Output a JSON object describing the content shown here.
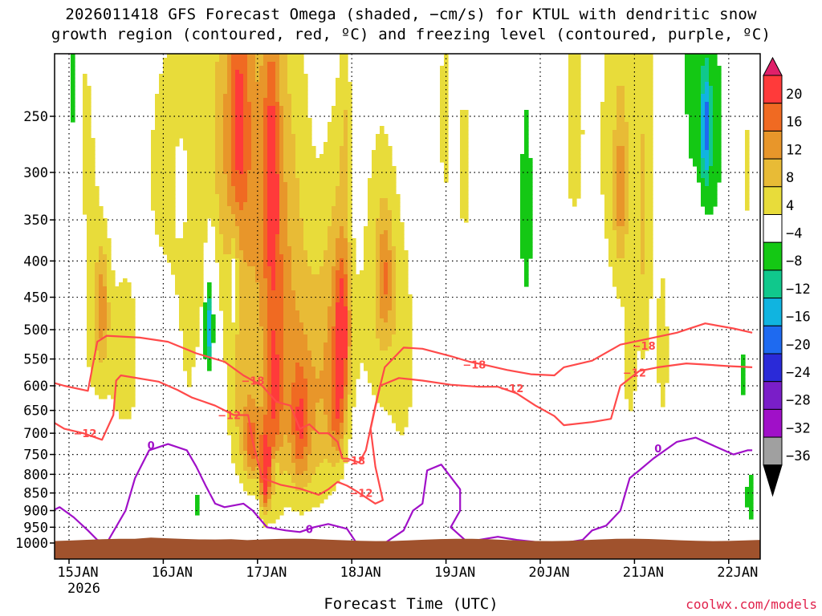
{
  "chart_data": {
    "type": "heatmap",
    "title_line1": "2026011418 GFS Forecast Omega (shaded, −cm/s) for KTUL with dendritic snow",
    "title_line2": "growth region (contoured, red, ºC) and freezing level (contoured, purple, ºC)",
    "xlabel": "Forecast Time (UTC)",
    "ylabel": "",
    "credit": "coolwx.com/models",
    "x_range_days": [
      0,
      7.5
    ],
    "x_ticks": [
      {
        "day": 0.25,
        "label": "15JAN",
        "sub": "2026"
      },
      {
        "day": 1.25,
        "label": "16JAN",
        "sub": ""
      },
      {
        "day": 2.25,
        "label": "17JAN",
        "sub": ""
      },
      {
        "day": 3.25,
        "label": "18JAN",
        "sub": ""
      },
      {
        "day": 4.25,
        "label": "19JAN",
        "sub": ""
      },
      {
        "day": 5.25,
        "label": "20JAN",
        "sub": ""
      },
      {
        "day": 6.25,
        "label": "21JAN",
        "sub": ""
      },
      {
        "day": 7.25,
        "label": "22JAN",
        "sub": ""
      }
    ],
    "y_range_hpa": [
      200,
      1030
    ],
    "y_ticks": [
      250,
      300,
      350,
      400,
      450,
      500,
      550,
      600,
      650,
      700,
      750,
      800,
      850,
      900,
      950,
      1000
    ],
    "terrain_top_hpa": 990,
    "colorbar": {
      "labels": [
        "20",
        "16",
        "12",
        "8",
        "4",
        "−4",
        "−8",
        "−12",
        "−16",
        "−20",
        "−24",
        "−28",
        "−32",
        "−36"
      ],
      "colors": [
        "#ff3a3a",
        "#f06a22",
        "#e8962a",
        "#e8bb36",
        "#e8dc3a",
        "#ffffff",
        "#14c814",
        "#10c88c",
        "#10b4e0",
        "#1e6af0",
        "#2a2ad8",
        "#7a1ec8",
        "#a010c8",
        "#a0a0a0"
      ],
      "top_color": "#e0206a",
      "bottom_color": "#000000"
    },
    "omega_blobs": [
      {
        "day": 0.05,
        "hpa": 420,
        "sd_day": 0.06,
        "sd_hpa": 180,
        "val": 6
      },
      {
        "day": 0.55,
        "hpa": 500,
        "sd_day": 0.12,
        "sd_hpa": 120,
        "val": 6
      },
      {
        "day": 0.6,
        "hpa": 460,
        "sd_day": 0.05,
        "sd_hpa": 60,
        "val": 9
      },
      {
        "day": 0.85,
        "hpa": 560,
        "sd_day": 0.12,
        "sd_hpa": 120,
        "val": 6
      },
      {
        "day": 0.45,
        "hpa": 260,
        "sd_day": 0.08,
        "sd_hpa": 80,
        "val": 5
      },
      {
        "day": 1.3,
        "hpa": 300,
        "sd_day": 0.25,
        "sd_hpa": 120,
        "val": 5
      },
      {
        "day": 1.55,
        "hpa": 500,
        "sd_day": 0.1,
        "sd_hpa": 160,
        "val": 5
      },
      {
        "day": 1.95,
        "hpa": 270,
        "sd_day": 0.28,
        "sd_hpa": 120,
        "val": 7
      },
      {
        "day": 2.05,
        "hpa": 250,
        "sd_day": 0.08,
        "sd_hpa": 60,
        "val": 11
      },
      {
        "day": 2.3,
        "hpa": 330,
        "sd_day": 0.3,
        "sd_hpa": 200,
        "val": 8
      },
      {
        "day": 2.4,
        "hpa": 300,
        "sd_day": 0.06,
        "sd_hpa": 80,
        "val": 12
      },
      {
        "day": 2.1,
        "hpa": 640,
        "sd_day": 0.12,
        "sd_hpa": 140,
        "val": 8
      },
      {
        "day": 2.2,
        "hpa": 730,
        "sd_day": 0.06,
        "sd_hpa": 60,
        "val": 12
      },
      {
        "day": 2.33,
        "hpa": 800,
        "sd_day": 0.035,
        "sd_hpa": 70,
        "val": 22
      },
      {
        "day": 2.42,
        "hpa": 650,
        "sd_day": 0.07,
        "sd_hpa": 150,
        "val": 12
      },
      {
        "day": 2.55,
        "hpa": 560,
        "sd_day": 0.18,
        "sd_hpa": 220,
        "val": 9
      },
      {
        "day": 2.7,
        "hpa": 690,
        "sd_day": 0.07,
        "sd_hpa": 100,
        "val": 12
      },
      {
        "day": 2.9,
        "hpa": 640,
        "sd_day": 0.14,
        "sd_hpa": 180,
        "val": 9
      },
      {
        "day": 3.12,
        "hpa": 470,
        "sd_day": 0.12,
        "sd_hpa": 160,
        "val": 10
      },
      {
        "day": 3.15,
        "hpa": 500,
        "sd_day": 0.05,
        "sd_hpa": 80,
        "val": 14
      },
      {
        "day": 3.1,
        "hpa": 660,
        "sd_day": 0.06,
        "sd_hpa": 80,
        "val": 11
      },
      {
        "day": 3.55,
        "hpa": 450,
        "sd_day": 0.16,
        "sd_hpa": 170,
        "val": 7
      },
      {
        "day": 3.6,
        "hpa": 420,
        "sd_day": 0.06,
        "sd_hpa": 60,
        "val": 10
      },
      {
        "day": 3.8,
        "hpa": 560,
        "sd_day": 0.1,
        "sd_hpa": 150,
        "val": 5
      },
      {
        "day": 3.2,
        "hpa": 260,
        "sd_day": 0.05,
        "sd_hpa": 60,
        "val": 5
      },
      {
        "day": 4.25,
        "hpa": 250,
        "sd_day": 0.08,
        "sd_hpa": 100,
        "val": 5
      },
      {
        "day": 4.45,
        "hpa": 300,
        "sd_day": 0.06,
        "sd_hpa": 80,
        "val": 5
      },
      {
        "day": 5.6,
        "hpa": 260,
        "sd_day": 0.08,
        "sd_hpa": 80,
        "val": 5
      },
      {
        "day": 6.15,
        "hpa": 280,
        "sd_day": 0.28,
        "sd_hpa": 150,
        "val": 6
      },
      {
        "day": 6.1,
        "hpa": 320,
        "sd_day": 0.05,
        "sd_hpa": 60,
        "val": 9
      },
      {
        "day": 6.35,
        "hpa": 400,
        "sd_day": 0.05,
        "sd_hpa": 150,
        "val": 5
      },
      {
        "day": 6.55,
        "hpa": 560,
        "sd_day": 0.06,
        "sd_hpa": 120,
        "val": 5
      },
      {
        "day": 6.2,
        "hpa": 570,
        "sd_day": 0.05,
        "sd_hpa": 80,
        "val": 6
      },
      {
        "day": 7.45,
        "hpa": 300,
        "sd_day": 0.04,
        "sd_hpa": 60,
        "val": 5
      },
      {
        "day": 0.3,
        "hpa": 230,
        "sd_day": 0.03,
        "sd_hpa": 40,
        "val": -6
      },
      {
        "day": 0.55,
        "hpa": 200,
        "sd_day": 0.05,
        "sd_hpa": 40,
        "val": -6
      },
      {
        "day": 1.45,
        "hpa": 320,
        "sd_day": 0.06,
        "sd_hpa": 40,
        "val": -6
      },
      {
        "day": 1.75,
        "hpa": 470,
        "sd_day": 0.05,
        "sd_hpa": 90,
        "val": -8
      },
      {
        "day": 1.72,
        "hpa": 500,
        "sd_day": 0.025,
        "sd_hpa": 40,
        "val": -13
      },
      {
        "day": 1.62,
        "hpa": 640,
        "sd_day": 0.04,
        "sd_hpa": 60,
        "val": -6
      },
      {
        "day": 1.6,
        "hpa": 880,
        "sd_day": 0.03,
        "sd_hpa": 40,
        "val": -6
      },
      {
        "day": 2.0,
        "hpa": 430,
        "sd_day": 0.03,
        "sd_hpa": 50,
        "val": -8
      },
      {
        "day": 2.45,
        "hpa": 780,
        "sd_day": 0.03,
        "sd_hpa": 40,
        "val": -6
      },
      {
        "day": 3.3,
        "hpa": 230,
        "sd_day": 0.05,
        "sd_hpa": 100,
        "val": -6
      },
      {
        "day": 3.2,
        "hpa": 880,
        "sd_day": 0.015,
        "sd_hpa": 30,
        "val": -6
      },
      {
        "day": 4.3,
        "hpa": 330,
        "sd_day": 0.02,
        "sd_hpa": 90,
        "val": -6
      },
      {
        "day": 5.1,
        "hpa": 340,
        "sd_day": 0.05,
        "sd_hpa": 90,
        "val": -7
      },
      {
        "day": 6.85,
        "hpa": 220,
        "sd_day": 0.06,
        "sd_hpa": 60,
        "val": -6
      },
      {
        "day": 7.05,
        "hpa": 260,
        "sd_day": 0.1,
        "sd_hpa": 70,
        "val": -8
      },
      {
        "day": 7.0,
        "hpa": 260,
        "sd_day": 0.03,
        "sd_hpa": 30,
        "val": -13
      },
      {
        "day": 7.4,
        "hpa": 580,
        "sd_day": 0.03,
        "sd_hpa": 40,
        "val": -6
      },
      {
        "day": 7.47,
        "hpa": 860,
        "sd_day": 0.025,
        "sd_hpa": 60,
        "val": -8
      }
    ],
    "contours": [
      {
        "name": "dgz-minus12",
        "label": "−12",
        "color": "#ff4a4a",
        "label_positions": [
          [
            0.42,
            700
          ],
          [
            1.95,
            660
          ],
          [
            3.35,
            850
          ],
          [
            4.95,
            605
          ],
          [
            6.25,
            575
          ]
        ],
        "points": [
          [
            0.0,
            665
          ],
          [
            0.2,
            690
          ],
          [
            0.4,
            700
          ],
          [
            0.6,
            715
          ],
          [
            0.72,
            660
          ],
          [
            0.75,
            590
          ],
          [
            0.8,
            580
          ],
          [
            1.2,
            592
          ],
          [
            1.4,
            608
          ],
          [
            1.55,
            623
          ],
          [
            1.8,
            640
          ],
          [
            2.0,
            660
          ],
          [
            2.15,
            660
          ],
          [
            2.2,
            720
          ],
          [
            2.3,
            810
          ],
          [
            2.5,
            828
          ],
          [
            2.7,
            838
          ],
          [
            2.9,
            855
          ],
          [
            3.0,
            840
          ],
          [
            3.1,
            820
          ],
          [
            3.2,
            830
          ],
          [
            3.3,
            845
          ],
          [
            3.5,
            880
          ],
          [
            3.58,
            870
          ],
          [
            3.5,
            780
          ],
          [
            3.45,
            690
          ],
          [
            3.55,
            600
          ],
          [
            3.75,
            585
          ],
          [
            4.0,
            590
          ],
          [
            4.3,
            598
          ],
          [
            4.6,
            602
          ],
          [
            4.8,
            602
          ],
          [
            5.0,
            615
          ],
          [
            5.2,
            640
          ],
          [
            5.4,
            662
          ],
          [
            5.5,
            682
          ],
          [
            5.8,
            675
          ],
          [
            6.0,
            668
          ],
          [
            6.1,
            600
          ],
          [
            6.3,
            572
          ],
          [
            6.5,
            565
          ],
          [
            6.8,
            558
          ],
          [
            7.0,
            560
          ],
          [
            7.25,
            563
          ],
          [
            7.5,
            565
          ]
        ]
      },
      {
        "name": "dgz-minus18",
        "label": "−18",
        "color": "#ff4a4a",
        "label_positions": [
          [
            2.2,
            590
          ],
          [
            3.27,
            765
          ],
          [
            4.55,
            560
          ],
          [
            6.35,
            527
          ]
        ],
        "points": [
          [
            0.0,
            590
          ],
          [
            0.2,
            600
          ],
          [
            0.45,
            610
          ],
          [
            0.55,
            520
          ],
          [
            0.65,
            510
          ],
          [
            1.0,
            513
          ],
          [
            1.3,
            520
          ],
          [
            1.6,
            540
          ],
          [
            1.9,
            555
          ],
          [
            2.1,
            580
          ],
          [
            2.3,
            600
          ],
          [
            2.45,
            632
          ],
          [
            2.6,
            640
          ],
          [
            2.7,
            690
          ],
          [
            2.8,
            680
          ],
          [
            2.9,
            700
          ],
          [
            3.0,
            700
          ],
          [
            3.1,
            720
          ],
          [
            3.15,
            760
          ],
          [
            3.2,
            760
          ],
          [
            3.33,
            770
          ],
          [
            3.4,
            740
          ],
          [
            3.5,
            640
          ],
          [
            3.6,
            565
          ],
          [
            3.8,
            530
          ],
          [
            4.0,
            532
          ],
          [
            4.3,
            545
          ],
          [
            4.5,
            555
          ],
          [
            4.7,
            562
          ],
          [
            4.9,
            570
          ],
          [
            5.15,
            578
          ],
          [
            5.4,
            580
          ],
          [
            5.5,
            565
          ],
          [
            5.8,
            553
          ],
          [
            6.1,
            525
          ],
          [
            6.4,
            515
          ],
          [
            6.7,
            505
          ],
          [
            7.0,
            490
          ],
          [
            7.3,
            498
          ],
          [
            7.5,
            505
          ]
        ]
      },
      {
        "name": "freezing-level-0",
        "label": "0",
        "color": "#a010c8",
        "label_positions": [
          [
            1.12,
            728
          ],
          [
            2.8,
            955
          ],
          [
            6.5,
            735
          ]
        ],
        "points": [
          [
            0.0,
            910
          ],
          [
            0.15,
            890
          ],
          [
            0.3,
            920
          ],
          [
            0.45,
            960
          ],
          [
            0.55,
            990
          ],
          [
            0.65,
            1000
          ],
          [
            0.85,
            900
          ],
          [
            0.95,
            810
          ],
          [
            1.1,
            740
          ],
          [
            1.3,
            725
          ],
          [
            1.5,
            740
          ],
          [
            1.6,
            780
          ],
          [
            1.7,
            830
          ],
          [
            1.8,
            880
          ],
          [
            1.9,
            890
          ],
          [
            2.1,
            880
          ],
          [
            2.2,
            900
          ],
          [
            2.35,
            950
          ],
          [
            2.55,
            960
          ],
          [
            2.7,
            965
          ],
          [
            2.85,
            950
          ],
          [
            3.0,
            940
          ],
          [
            3.2,
            955
          ],
          [
            3.3,
            1000
          ],
          [
            3.6,
            1000
          ],
          [
            3.8,
            960
          ],
          [
            3.9,
            900
          ],
          [
            4.0,
            880
          ],
          [
            4.05,
            790
          ],
          [
            4.2,
            775
          ],
          [
            4.4,
            840
          ],
          [
            4.4,
            900
          ],
          [
            4.3,
            950
          ],
          [
            4.45,
            990
          ],
          [
            4.6,
            990
          ],
          [
            4.8,
            980
          ],
          [
            5.0,
            990
          ],
          [
            5.3,
            1000
          ],
          [
            5.5,
            1000
          ],
          [
            5.7,
            990
          ],
          [
            5.8,
            960
          ],
          [
            5.95,
            945
          ],
          [
            6.1,
            900
          ],
          [
            6.2,
            810
          ],
          [
            6.3,
            790
          ],
          [
            6.45,
            760
          ],
          [
            6.7,
            720
          ],
          [
            6.9,
            710
          ],
          [
            7.1,
            730
          ],
          [
            7.3,
            750
          ],
          [
            7.45,
            740
          ],
          [
            7.5,
            740
          ]
        ]
      }
    ]
  }
}
